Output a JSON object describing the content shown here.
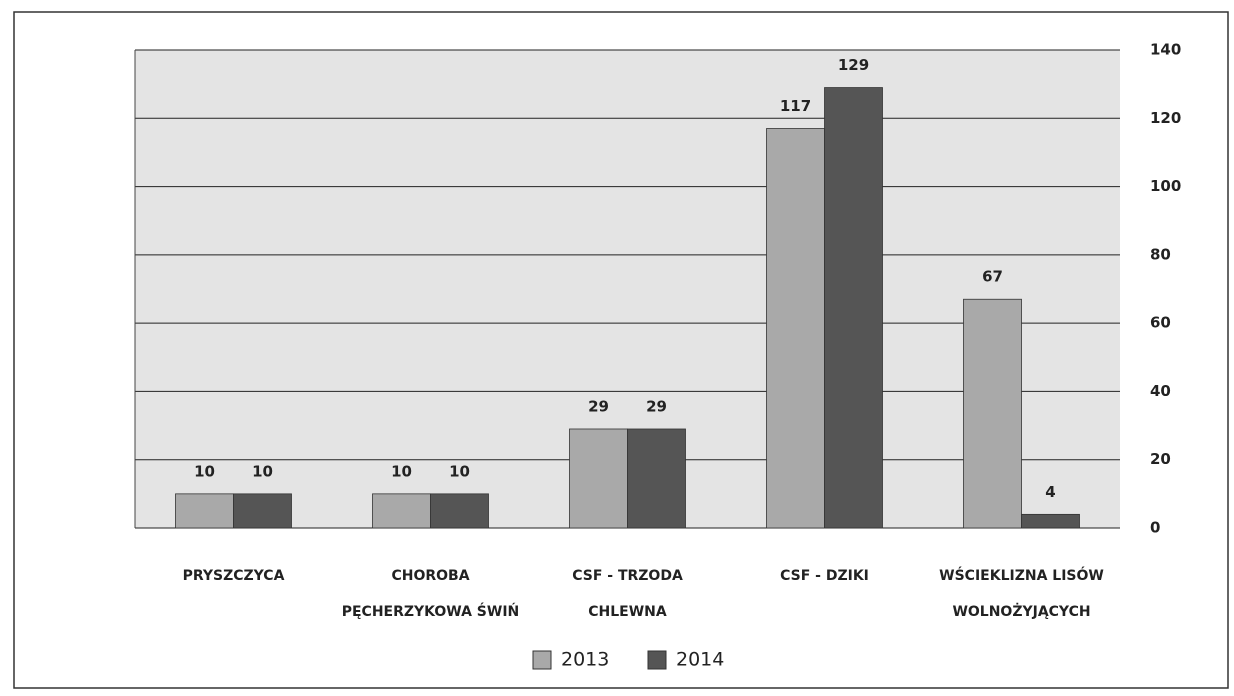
{
  "chart_data": {
    "type": "bar",
    "categories": [
      "PRYSZCZYCA",
      "CHOROBA PĘCHERZYKOWA ŚWIŃ",
      "CSF - TRZODA CHLEWNA",
      "CSF - DZIKI",
      "WŚCIEKLIZNA LISÓW WOLNOŻYJĄCYCH"
    ],
    "series": [
      {
        "name": "2013",
        "color": "#a9a9a9",
        "values": [
          10,
          10,
          29,
          117,
          67
        ]
      },
      {
        "name": "2014",
        "color": "#555555",
        "values": [
          10,
          10,
          29,
          129,
          4
        ]
      }
    ],
    "ylim": [
      0,
      140
    ],
    "yticks": [
      0,
      20,
      40,
      60,
      80,
      100,
      120,
      140
    ],
    "grid": true,
    "y_axis_side": "right"
  }
}
